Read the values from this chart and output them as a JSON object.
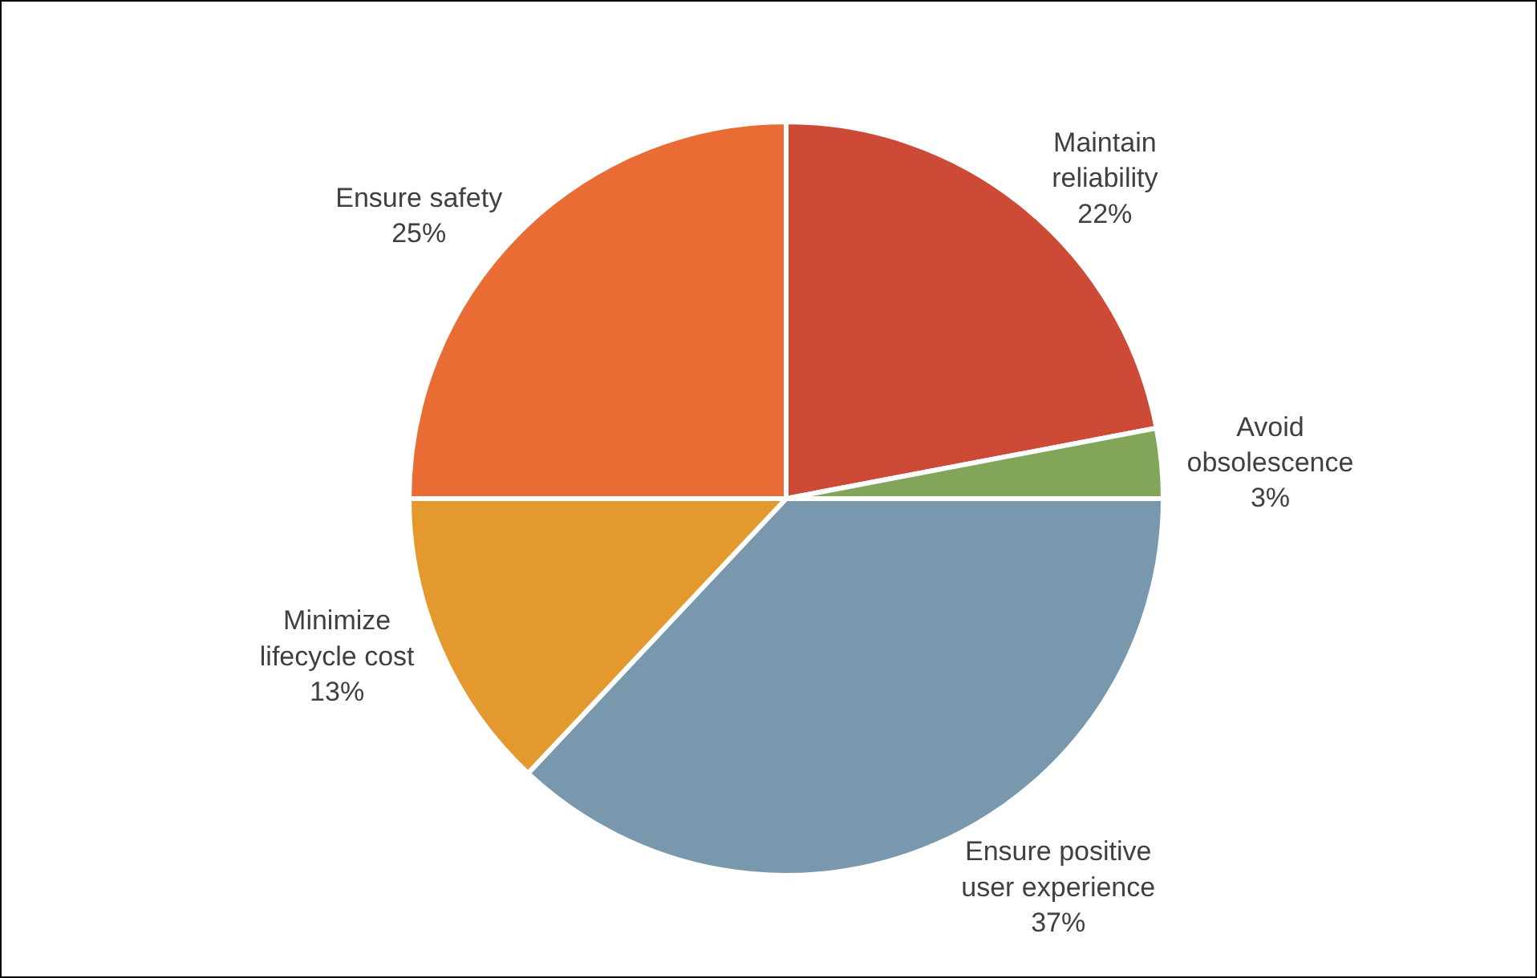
{
  "chart_data": {
    "type": "pie",
    "categories": [
      "Maintain reliability",
      "Avoid obsolescence",
      "Ensure positive user experience",
      "Minimize lifecycle cost",
      "Ensure safety"
    ],
    "values": [
      22,
      3,
      37,
      13,
      25
    ],
    "value_labels": [
      "22%",
      "3%",
      "37%",
      "13%",
      "25%"
    ],
    "colors": [
      "#cc4a36",
      "#82a55a",
      "#7a98ad",
      "#e3992e",
      "#e96c35"
    ],
    "legend": false
  }
}
